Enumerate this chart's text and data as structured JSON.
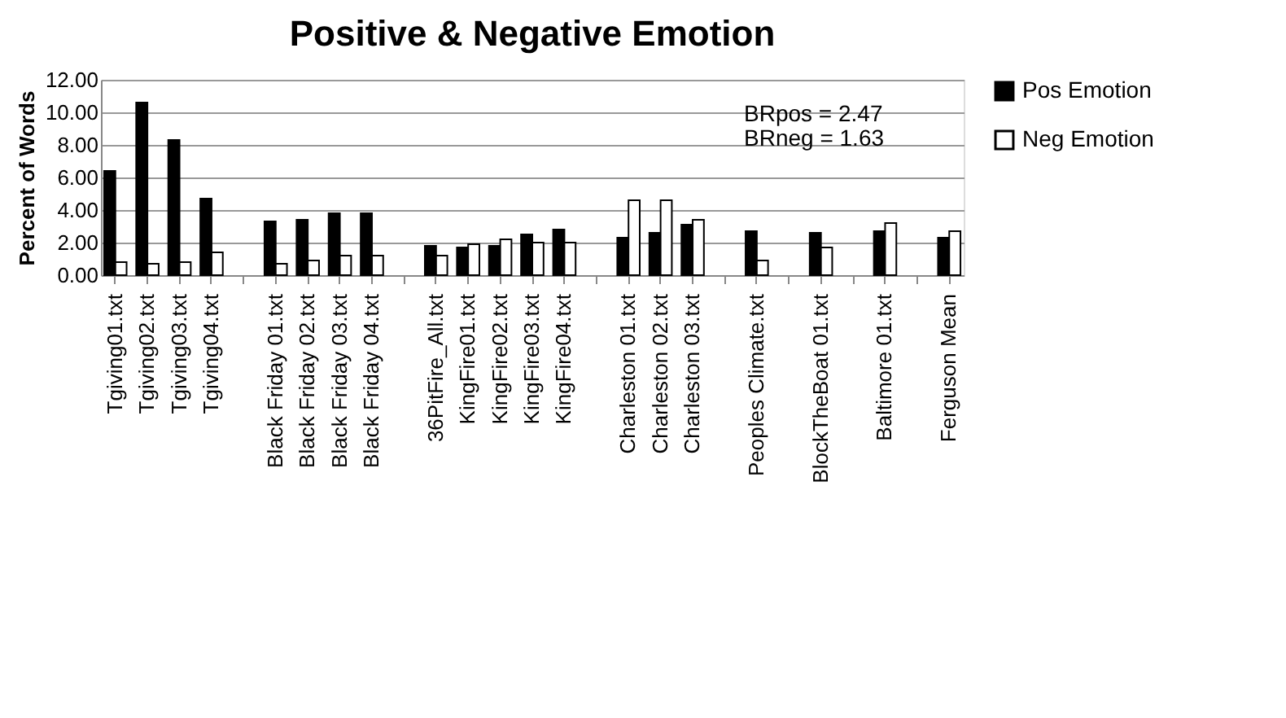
{
  "chart_data": {
    "type": "bar",
    "title": "Positive & Negative Emotion",
    "ylabel": "Percent of Words",
    "categories": [
      "Tgiving01.txt",
      "Tgiving02.txt",
      "Tgiving03.txt",
      "Tgiving04.txt",
      null,
      "Black Friday 01.txt",
      "Black Friday 02.txt",
      "Black Friday 03.txt",
      "Black Friday 04.txt",
      null,
      "36PitFire_All.txt",
      "KingFire01.txt",
      "KingFire02.txt",
      "KingFire03.txt",
      "KingFire04.txt",
      null,
      "Charleston 01.txt",
      "Charleston 02.txt",
      "Charleston 03.txt",
      null,
      "Peoples Climate.txt",
      null,
      "BlockTheBoat 01.txt",
      null,
      "Baltimore 01.txt",
      null,
      "Ferguson Mean"
    ],
    "series": [
      {
        "name": "Pos Emotion",
        "color": "#000000",
        "values": [
          6.4,
          10.6,
          8.3,
          4.7,
          null,
          3.3,
          3.4,
          3.8,
          3.8,
          null,
          1.8,
          1.7,
          1.8,
          2.5,
          2.8,
          null,
          2.3,
          2.6,
          3.1,
          null,
          2.7,
          null,
          2.6,
          null,
          2.7,
          null,
          2.3
        ]
      },
      {
        "name": "Neg Emotion",
        "color": "#ffffff",
        "values": [
          0.8,
          0.7,
          0.8,
          1.4,
          null,
          0.7,
          0.9,
          1.2,
          1.2,
          null,
          1.2,
          1.9,
          2.2,
          2.0,
          2.0,
          null,
          4.6,
          4.6,
          3.4,
          null,
          0.9,
          null,
          1.7,
          null,
          3.2,
          null,
          2.7
        ]
      }
    ],
    "ylim": [
      0,
      12
    ],
    "yticks": [
      {
        "value": 0,
        "label": "0.00"
      },
      {
        "value": 2,
        "label": "2.00"
      },
      {
        "value": 4,
        "label": "4.00"
      },
      {
        "value": 6,
        "label": "6.00"
      },
      {
        "value": 8,
        "label": "8.00"
      },
      {
        "value": 10,
        "label": "10.00"
      },
      {
        "value": 12,
        "label": "12.00"
      }
    ],
    "grid": "y",
    "legend": "right",
    "annotations": [
      "BRpos = 2.47",
      "BRneg = 1.63"
    ]
  }
}
